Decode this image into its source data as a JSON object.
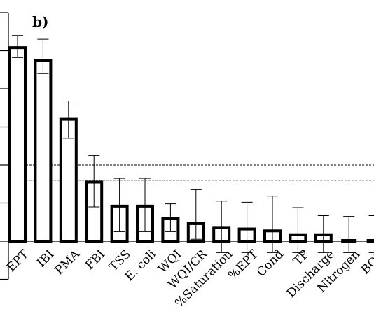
{
  "panel_label": "b)",
  "chart_data": {
    "type": "bar",
    "title": "",
    "xlabel": "",
    "ylabel": "",
    "ylim": [
      -1,
      6
    ],
    "y_tick_step": 1,
    "tick_labels_shown": false,
    "grid": false,
    "reference_lines": [
      1.6,
      2.0
    ],
    "categories": [
      "EPT",
      "IBI",
      "PMA",
      "FBI",
      "TSS",
      "E. coli",
      "WQI",
      "WQI/CR",
      "%Saturation",
      "%EPT",
      "Cond",
      "TP",
      "Discharge",
      "Nitrogen",
      "BOD"
    ],
    "series": [
      {
        "values": [
          5.08,
          4.75,
          3.2,
          1.55,
          0.92,
          0.92,
          0.6,
          0.46,
          0.36,
          0.32,
          0.27,
          0.17,
          0.17,
          0.02,
          0.02
        ],
        "error_low": [
          4.82,
          4.4,
          2.7,
          0.9,
          0.25,
          0.25,
          0.25,
          0.05,
          -0.3,
          -0.3,
          -0.3,
          -0.3,
          -0.3,
          -0.3,
          -0.3
        ],
        "error_high": [
          5.4,
          5.3,
          3.68,
          2.25,
          1.65,
          1.65,
          0.98,
          1.35,
          1.05,
          1.02,
          1.18,
          0.88,
          0.67,
          0.65,
          0.67
        ]
      }
    ]
  }
}
